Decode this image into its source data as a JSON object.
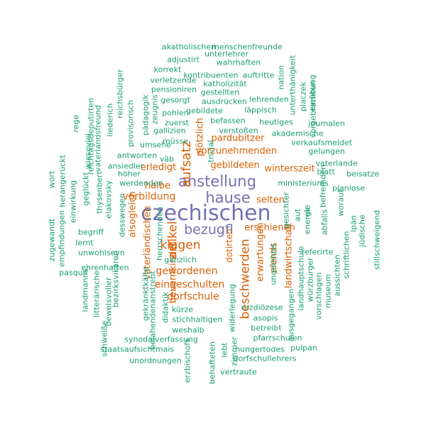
{
  "palette": {
    "teal": "#1b9e77",
    "orange": "#d95f02",
    "purple": "#7570b3"
  },
  "words": [
    {
      "text": "czechischen",
      "color": "purple"
    },
    {
      "text": "anstellung",
      "color": "purple"
    },
    {
      "text": "hause",
      "color": "purple"
    },
    {
      "text": "bezugfl",
      "color": "purple"
    },
    {
      "text": "aufsatz",
      "color": "orange"
    },
    {
      "text": "artikel",
      "color": "orange"
    },
    {
      "text": "klagen",
      "color": "orange"
    },
    {
      "text": "beschwerden",
      "color": "orange"
    },
    {
      "text": "dorfschule",
      "color": "orange"
    },
    {
      "text": "eingeschulten",
      "color": "orange"
    },
    {
      "text": "gewordenen",
      "color": "orange"
    },
    {
      "text": "vorbildung",
      "color": "orange"
    },
    {
      "text": "erledigt",
      "color": "orange"
    },
    {
      "text": "halbe",
      "color": "orange"
    },
    {
      "text": "alsogleich",
      "color": "orange"
    },
    {
      "text": "vaterländischen",
      "color": "orange"
    },
    {
      "text": "bauernkinder",
      "color": "orange"
    },
    {
      "text": "pardubitzer",
      "color": "orange"
    },
    {
      "text": "vorzunehmenden",
      "color": "orange"
    },
    {
      "text": "gebildeten",
      "color": "orange"
    },
    {
      "text": "winterszeit",
      "color": "orange"
    },
    {
      "text": "selten",
      "color": "orange"
    },
    {
      "text": "erschienen",
      "color": "orange"
    },
    {
      "text": "erwartungen",
      "color": "orange"
    },
    {
      "text": "landwirtschaft",
      "color": "orange"
    },
    {
      "text": "elends",
      "color": "orange"
    },
    {
      "text": "plötzlich",
      "color": "orange"
    },
    {
      "text": "dotirten",
      "color": "orange"
    },
    {
      "text": "akatholischen",
      "color": "teal"
    },
    {
      "text": "menschenfreunde",
      "color": "teal"
    },
    {
      "text": "adjustirt",
      "color": "teal"
    },
    {
      "text": "unterlehrer",
      "color": "teal"
    },
    {
      "text": "wahrhaften",
      "color": "teal"
    },
    {
      "text": "korrekt",
      "color": "teal"
    },
    {
      "text": "kontribuenten",
      "color": "teal"
    },
    {
      "text": "auftritte",
      "color": "teal"
    },
    {
      "text": "verletzende",
      "color": "teal"
    },
    {
      "text": "katholizität",
      "color": "teal"
    },
    {
      "text": "pensioniren",
      "color": "teal"
    },
    {
      "text": "gestellten",
      "color": "teal"
    },
    {
      "text": "gesorgt",
      "color": "teal"
    },
    {
      "text": "ausdrücken",
      "color": "teal"
    },
    {
      "text": "lehrenden",
      "color": "teal"
    },
    {
      "text": "pohlen",
      "color": "teal"
    },
    {
      "text": "gebildete",
      "color": "teal"
    },
    {
      "text": "läppisch",
      "color": "teal"
    },
    {
      "text": "befassen",
      "color": "teal"
    },
    {
      "text": "heutiges",
      "color": "teal"
    },
    {
      "text": "zuerst",
      "color": "teal"
    },
    {
      "text": "verstoßen",
      "color": "teal"
    },
    {
      "text": "gallizien",
      "color": "teal"
    },
    {
      "text": "müsse",
      "color": "teal"
    },
    {
      "text": "akademische",
      "color": "teal"
    },
    {
      "text": "journalen",
      "color": "teal"
    },
    {
      "text": "umsehe",
      "color": "teal"
    },
    {
      "text": "verkaufsmeldet",
      "color": "teal"
    },
    {
      "text": "gelungen",
      "color": "teal"
    },
    {
      "text": "antworten",
      "color": "teal"
    },
    {
      "text": "väb",
      "color": "teal"
    },
    {
      "text": "ansiedler",
      "color": "teal"
    },
    {
      "text": "vaterlande",
      "color": "teal"
    },
    {
      "text": "blatt",
      "color": "teal"
    },
    {
      "text": "beisatze",
      "color": "teal"
    },
    {
      "text": "höher",
      "color": "teal"
    },
    {
      "text": "werdenden",
      "color": "teal"
    },
    {
      "text": "ministeriums",
      "color": "teal"
    },
    {
      "text": "planlose",
      "color": "teal"
    },
    {
      "text": "gänzlich",
      "color": "teal"
    },
    {
      "text": "begriff",
      "color": "teal"
    },
    {
      "text": "unwohlseyn",
      "color": "teal"
    },
    {
      "text": "referirte",
      "color": "teal"
    },
    {
      "text": "pasquil",
      "color": "teal"
    },
    {
      "text": "ehrenhaften",
      "color": "teal"
    },
    {
      "text": "lernt",
      "color": "teal"
    },
    {
      "text": "kürze",
      "color": "teal"
    },
    {
      "text": "stichhaltigen",
      "color": "teal"
    },
    {
      "text": "weshalb",
      "color": "teal"
    },
    {
      "text": "erzdiözese",
      "color": "teal"
    },
    {
      "text": "asopis",
      "color": "teal"
    },
    {
      "text": "betreibt",
      "color": "teal"
    },
    {
      "text": "pfarrschulen",
      "color": "teal"
    },
    {
      "text": "synodalverfassung",
      "color": "teal"
    },
    {
      "text": "staatsaufsicht",
      "color": "teal"
    },
    {
      "text": "mais",
      "color": "teal"
    },
    {
      "text": "hungertodes",
      "color": "teal"
    },
    {
      "text": "pulpan",
      "color": "teal"
    },
    {
      "text": "unordnungen",
      "color": "teal"
    },
    {
      "text": "dorfschullehrers",
      "color": "teal"
    },
    {
      "text": "vertraute",
      "color": "teal"
    },
    {
      "text": "reichsbürger",
      "color": "teal"
    },
    {
      "text": "liederich",
      "color": "teal"
    },
    {
      "text": "provisorisch",
      "color": "teal"
    },
    {
      "text": "pädagogik",
      "color": "teal"
    },
    {
      "text": "zeugnis",
      "color": "teal"
    },
    {
      "text": "rege",
      "color": "teal"
    },
    {
      "text": "reichtagsdeputirten",
      "color": "teal"
    },
    {
      "text": "wiesoviel",
      "color": "teal"
    },
    {
      "text": "vaterlandsfreund",
      "color": "teal"
    },
    {
      "text": "geglückt",
      "color": "teal"
    },
    {
      "text": "thysenbert",
      "color": "teal"
    },
    {
      "text": "elakovsky",
      "color": "teal"
    },
    {
      "text": "desswegen",
      "color": "teal"
    },
    {
      "text": "herrschenden",
      "color": "teal"
    },
    {
      "text": "wort",
      "color": "teal"
    },
    {
      "text": "herangerückt",
      "color": "teal"
    },
    {
      "text": "einwirkung",
      "color": "teal"
    },
    {
      "text": "zugewandt",
      "color": "teal"
    },
    {
      "text": "empfindungen",
      "color": "teal"
    },
    {
      "text": "landmanns",
      "color": "teal"
    },
    {
      "text": "litterärische",
      "color": "teal"
    },
    {
      "text": "beweisvoller",
      "color": "teal"
    },
    {
      "text": "bezirksvikären",
      "color": "teal"
    },
    {
      "text": "schweiße",
      "color": "teal"
    },
    {
      "text": "gekränktkälte",
      "color": "teal"
    },
    {
      "text": "bejahendenanstrebt",
      "color": "teal"
    },
    {
      "text": "didaktik",
      "color": "teal"
    },
    {
      "text": "lebt",
      "color": "teal"
    },
    {
      "text": "zimmer",
      "color": "teal"
    },
    {
      "text": "behafteten",
      "color": "teal"
    },
    {
      "text": "erzbischofs",
      "color": "teal"
    },
    {
      "text": "gesichter",
      "color": "teal"
    },
    {
      "text": "ungebildet",
      "color": "teal"
    },
    {
      "text": "aut",
      "color": "teal"
    },
    {
      "text": "ek",
      "color": "teal"
    },
    {
      "text": "energie",
      "color": "teal"
    },
    {
      "text": "abfalls",
      "color": "teal"
    },
    {
      "text": "befremden",
      "color": "teal"
    },
    {
      "text": "worauf",
      "color": "teal"
    },
    {
      "text": "lpän",
      "color": "teal"
    },
    {
      "text": "jüdische",
      "color": "teal"
    },
    {
      "text": "stillschweigend",
      "color": "teal"
    },
    {
      "text": "ausgegangen",
      "color": "teal"
    },
    {
      "text": "landhauptschule",
      "color": "teal"
    },
    {
      "text": "würzburger",
      "color": "teal"
    },
    {
      "text": "vorschlagen",
      "color": "teal"
    },
    {
      "text": "museum",
      "color": "teal"
    },
    {
      "text": "aussichten",
      "color": "teal"
    },
    {
      "text": "schriftlichen",
      "color": "teal"
    },
    {
      "text": "nation",
      "color": "teal"
    },
    {
      "text": "unterthänigkeit",
      "color": "teal"
    },
    {
      "text": "placzek",
      "color": "teal"
    },
    {
      "text": "einübung",
      "color": "teal"
    },
    {
      "text": "vorgebrachten",
      "color": "teal"
    },
    {
      "text": "widerlegung",
      "color": "teal"
    },
    {
      "text": "trivial",
      "color": "teal"
    },
    {
      "text": "thumstags",
      "color": "teal"
    },
    {
      "text": "petition",
      "color": "teal"
    }
  ]
}
